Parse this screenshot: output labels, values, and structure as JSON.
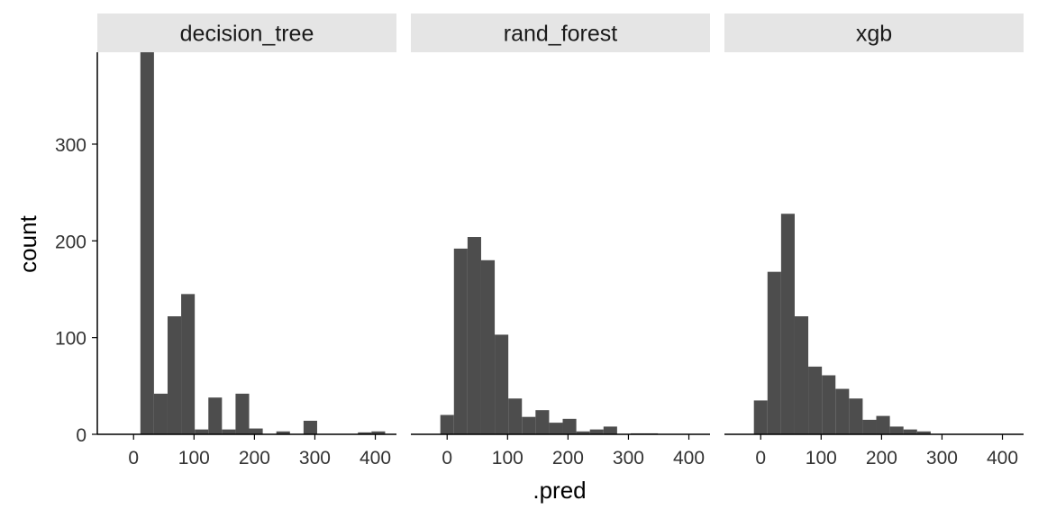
{
  "chart_data": {
    "type": "bar",
    "xlabel": ".pred",
    "ylabel": "count",
    "ylim": [
      0,
      395
    ],
    "xlim": [
      -60,
      435
    ],
    "x_ticks": [
      0,
      100,
      200,
      300,
      400
    ],
    "y_ticks": [
      0,
      100,
      200,
      300
    ],
    "bar_color": "#4d4d4d",
    "strip_color": "#e5e5e5",
    "bin_width": 22.5,
    "first_bin_start": 0,
    "panels": [
      {
        "name": "decision_tree",
        "first_bin_start": 11.25,
        "counts": [
          395,
          42,
          122,
          145,
          5,
          38,
          5,
          42,
          6,
          0,
          3,
          0,
          14,
          0,
          0,
          0,
          2,
          3
        ]
      },
      {
        "name": "rand_forest",
        "first_bin_start": -11.25,
        "counts": [
          20,
          192,
          204,
          180,
          103,
          37,
          18,
          25,
          12,
          16,
          3,
          5,
          8,
          0,
          1,
          1,
          0,
          0
        ]
      },
      {
        "name": "xgb",
        "first_bin_start": -11.25,
        "counts": [
          35,
          168,
          228,
          122,
          70,
          61,
          47,
          37,
          15,
          19,
          8,
          5,
          3,
          0,
          0,
          0,
          0,
          0
        ]
      }
    ]
  }
}
